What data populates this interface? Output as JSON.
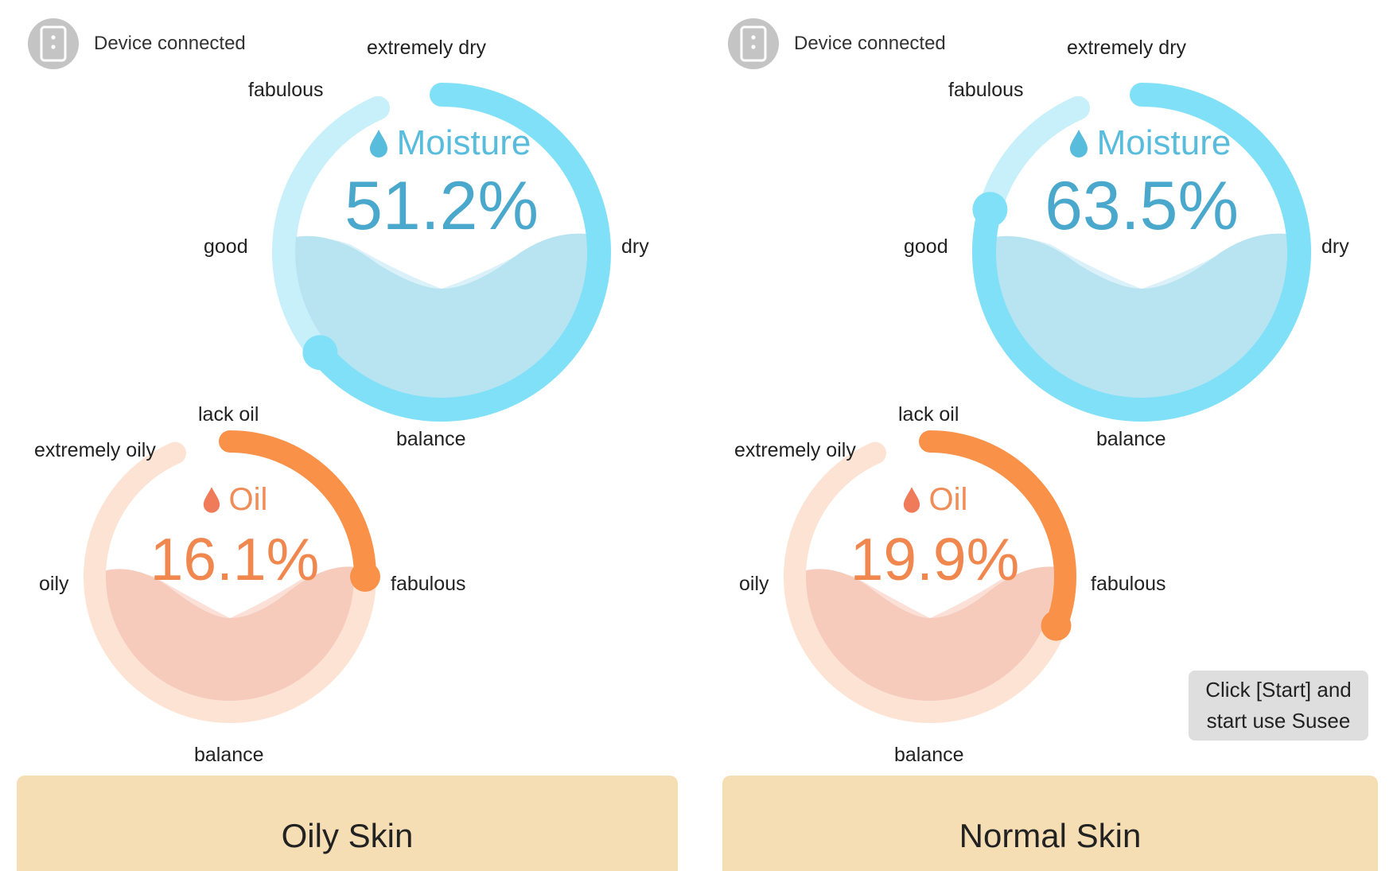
{
  "colors": {
    "moisture_track": "#c7f0fa",
    "moisture_arc": "#80e0f8",
    "moisture_fill": "#b8e4f2",
    "oil_track": "#fde3d4",
    "oil_arc": "#f99148",
    "oil_fill": "#f6cbbc",
    "result_bar": "#f6deb4",
    "device_icon": "#c4c4c4"
  },
  "icons": {
    "device": "phone-device-icon",
    "moisture": "water-drop-icon",
    "oil": "oil-drop-icon"
  },
  "panels": [
    {
      "device_status": "Device connected",
      "moisture": {
        "title": "Moisture",
        "value": "51.2%",
        "level_percent": 51.2,
        "labels": {
          "top": "extremely dry",
          "upper_left": "fabulous",
          "left": "good",
          "right": "dry",
          "bottom": "balance"
        }
      },
      "oil": {
        "title": "Oil",
        "value": "16.1%",
        "level_percent": 16.1,
        "labels": {
          "top": "lack oil",
          "upper_left": "extremely oily",
          "left": "oily",
          "right": "fabulous",
          "bottom": "balance"
        }
      },
      "skin_type": "Oily Skin"
    },
    {
      "device_status": "Device connected",
      "moisture": {
        "title": "Moisture",
        "value": "63.5%",
        "level_percent": 63.5,
        "labels": {
          "top": "extremely dry",
          "upper_left": "fabulous",
          "left": "good",
          "right": "dry",
          "bottom": "balance"
        }
      },
      "oil": {
        "title": "Oil",
        "value": "19.9%",
        "level_percent": 19.9,
        "labels": {
          "top": "lack oil",
          "upper_left": "extremely oily",
          "left": "oily",
          "right": "fabulous",
          "bottom": "balance"
        }
      },
      "skin_type": "Normal Skin",
      "hint": {
        "line1": "Click [Start] and",
        "line2": "start use Susee"
      }
    }
  ]
}
